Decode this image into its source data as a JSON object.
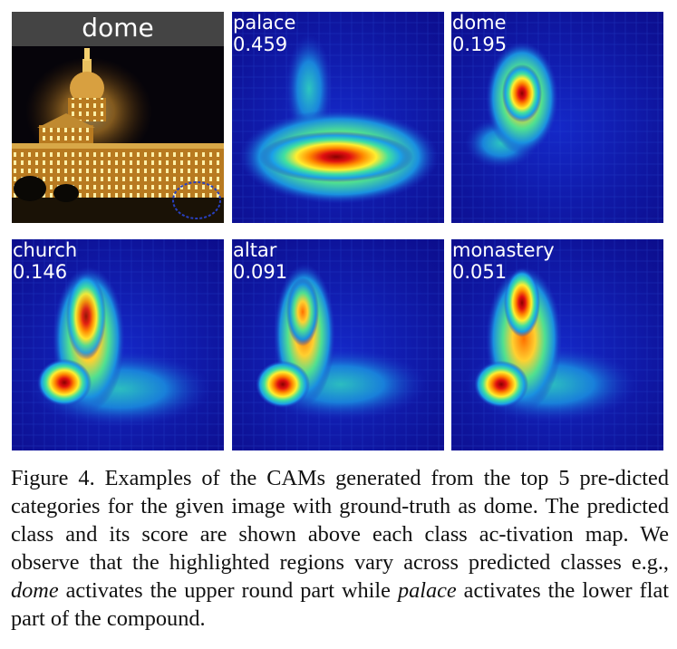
{
  "figure": {
    "original": {
      "label": "dome"
    },
    "maps": [
      {
        "cls": "palace",
        "score": "0.459"
      },
      {
        "cls": "dome",
        "score": "0.195"
      },
      {
        "cls": "church",
        "score": "0.146"
      },
      {
        "cls": "altar",
        "score": "0.091"
      },
      {
        "cls": "monastery",
        "score": "0.051"
      }
    ]
  },
  "caption": {
    "s1": "Figure 4. Examples of the CAMs generated from the top 5 pre-dicted categories for the given image with ground-truth as dome. The predicted class and its score are shown above each class ac-tivation map. We observe that the highlighted regions vary across predicted classes e.g., ",
    "em1": "dome",
    "s2": " activates the upper round part while ",
    "em2": "palace",
    "s3": " activates the lower flat part of the compound."
  },
  "colors": {
    "cam_bg": "#10109a",
    "night_sky": "#06040a",
    "caption_text": "#111111"
  }
}
